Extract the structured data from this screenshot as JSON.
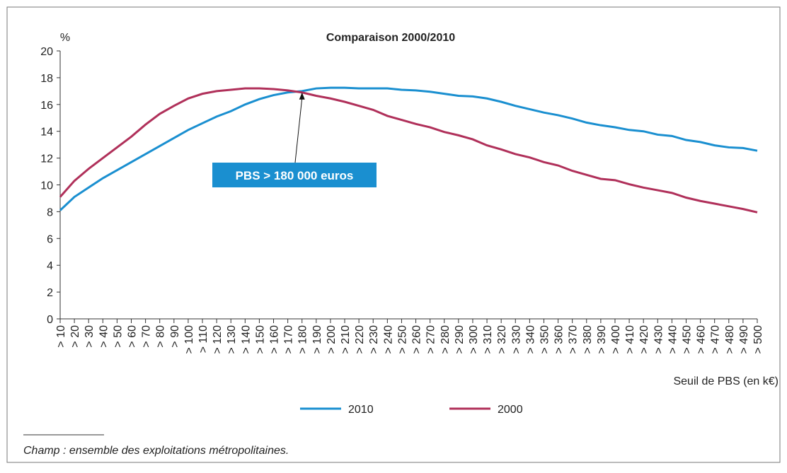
{
  "chart_data": {
    "type": "line",
    "title": "Comparaison 2000/2010",
    "y_label": "%",
    "x_label": "Seuil de PBS (en k€)",
    "annotation": "PBS > 180 000 euros",
    "footnote": "Champ : ensemble des exploitations métropolitaines.",
    "categories": [
      "> 10",
      "> 20",
      "> 30",
      "> 40",
      "> 50",
      "> 60",
      "> 70",
      "> 80",
      "> 90",
      "> 100",
      "> 110",
      "> 120",
      "> 130",
      "> 140",
      "> 150",
      "> 160",
      "> 170",
      "> 180",
      "> 190",
      "> 200",
      "> 210",
      "> 220",
      "> 230",
      "> 240",
      "> 250",
      "> 260",
      "> 270",
      "> 280",
      "> 290",
      "> 300",
      "> 310",
      "> 320",
      "> 330",
      "> 340",
      "> 350",
      "> 360",
      "> 370",
      "> 380",
      "> 390",
      "> 400",
      "> 410",
      "> 420",
      "> 430",
      "> 440",
      "> 450",
      "> 460",
      "> 470",
      "> 480",
      "> 490",
      "> 500"
    ],
    "series": [
      {
        "name": "2010",
        "color": "#1a8fd0",
        "values": [
          8.1,
          9.1,
          9.8,
          10.5,
          11.1,
          11.7,
          12.3,
          12.9,
          13.5,
          14.1,
          14.6,
          15.1,
          15.5,
          16.0,
          16.4,
          16.7,
          16.9,
          17.0,
          17.2,
          17.25,
          17.25,
          17.2,
          17.2,
          17.2,
          17.1,
          17.05,
          16.95,
          16.8,
          16.65,
          16.6,
          16.45,
          16.2,
          15.9,
          15.65,
          15.4,
          15.2,
          14.95,
          14.65,
          14.45,
          14.3,
          14.1,
          14.0,
          13.75,
          13.65,
          13.35,
          13.2,
          12.95,
          12.8,
          12.75,
          12.55
        ]
      },
      {
        "name": "2000",
        "color": "#b0305a",
        "values": [
          9.1,
          10.3,
          11.2,
          12.0,
          12.8,
          13.6,
          14.5,
          15.3,
          15.9,
          16.45,
          16.8,
          17.0,
          17.1,
          17.2,
          17.2,
          17.15,
          17.05,
          16.9,
          16.65,
          16.45,
          16.2,
          15.9,
          15.6,
          15.15,
          14.85,
          14.55,
          14.3,
          13.95,
          13.7,
          13.4,
          12.95,
          12.65,
          12.3,
          12.05,
          11.7,
          11.45,
          11.05,
          10.75,
          10.45,
          10.35,
          10.05,
          9.8,
          9.6,
          9.4,
          9.05,
          8.8,
          8.6,
          8.4,
          8.2,
          7.95
        ]
      }
    ],
    "ylim": [
      0,
      20
    ],
    "yticks": [
      0,
      2,
      4,
      6,
      8,
      10,
      12,
      14,
      16,
      18,
      20
    ]
  }
}
